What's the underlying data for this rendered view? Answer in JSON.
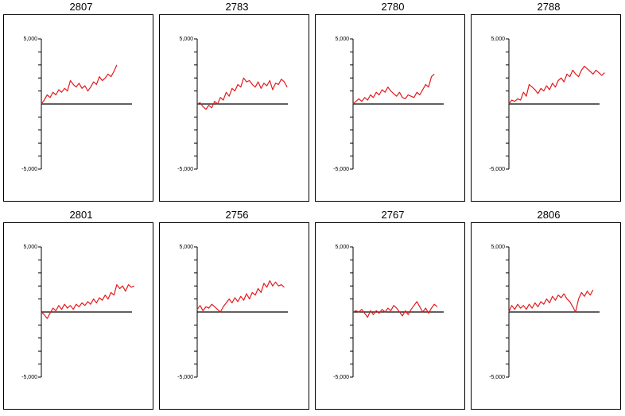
{
  "chart_data": [
    {
      "type": "line",
      "title": "2807",
      "ytick_labels": [
        "5,000",
        "-5,000"
      ],
      "ylim": [
        -5000,
        5000
      ],
      "series": [
        {
          "color": "#e31a1c",
          "values": [
            0,
            300,
            700,
            500,
            900,
            700,
            1100,
            900,
            1200,
            1000,
            1800,
            1500,
            1300,
            1600,
            1200,
            1400,
            1000,
            1300,
            1700,
            1500,
            2100,
            1800,
            2000,
            2300,
            2100,
            2500,
            3000
          ]
        }
      ]
    },
    {
      "type": "line",
      "title": "2783",
      "ytick_labels": [
        "5,000",
        "-5,000"
      ],
      "ylim": [
        -5000,
        5000
      ],
      "series": [
        {
          "color": "#e31a1c",
          "values": [
            0,
            100,
            -200,
            -400,
            -100,
            -300,
            200,
            0,
            500,
            300,
            900,
            600,
            1200,
            1000,
            1500,
            1300,
            2000,
            1700,
            1800,
            1500,
            1300,
            1700,
            1200,
            1600,
            1400,
            1800,
            1100,
            1600,
            1500,
            1900,
            1700,
            1300
          ]
        }
      ]
    },
    {
      "type": "line",
      "title": "2780",
      "ytick_labels": [
        "5,000",
        "-5,000"
      ],
      "ylim": [
        -5000,
        5000
      ],
      "series": [
        {
          "color": "#e31a1c",
          "values": [
            0,
            200,
            400,
            200,
            500,
            300,
            700,
            500,
            900,
            700,
            1100,
            900,
            1300,
            1000,
            800,
            600,
            900,
            500,
            400,
            700,
            600,
            500,
            900,
            700,
            1100,
            1500,
            1300,
            2100,
            2300
          ]
        }
      ]
    },
    {
      "type": "line",
      "title": "2788",
      "ytick_labels": [
        "5,000",
        "-5,000"
      ],
      "ylim": [
        -5000,
        5000
      ],
      "series": [
        {
          "color": "#e31a1c",
          "values": [
            0,
            300,
            200,
            400,
            300,
            900,
            600,
            1500,
            1300,
            1100,
            800,
            1200,
            1000,
            1400,
            1100,
            1600,
            1300,
            1800,
            2000,
            1700,
            2300,
            2100,
            2600,
            2300,
            2100,
            2600,
            2900,
            2700,
            2500,
            2300,
            2600,
            2400,
            2200,
            2400
          ]
        }
      ]
    },
    {
      "type": "line",
      "title": "2801",
      "ytick_labels": [
        "5,000",
        "-5,000"
      ],
      "ylim": [
        -5000,
        5000
      ],
      "series": [
        {
          "color": "#e31a1c",
          "values": [
            0,
            -200,
            -500,
            -100,
            300,
            100,
            500,
            200,
            600,
            300,
            500,
            200,
            600,
            400,
            700,
            500,
            800,
            600,
            1000,
            700,
            1100,
            900,
            1300,
            1000,
            1500,
            1300,
            2100,
            1800,
            2000,
            1600,
            2100,
            1900,
            2000
          ]
        }
      ]
    },
    {
      "type": "line",
      "title": "2756",
      "ytick_labels": [
        "5,000",
        "-5,000"
      ],
      "ylim": [
        -5000,
        5000
      ],
      "series": [
        {
          "color": "#e31a1c",
          "values": [
            200,
            500,
            100,
            400,
            300,
            600,
            400,
            200,
            0,
            400,
            700,
            1000,
            700,
            1100,
            800,
            1200,
            900,
            1400,
            1000,
            1500,
            1300,
            1800,
            1500,
            2200,
            1900,
            2400,
            2000,
            2300,
            2000,
            2100,
            1900
          ]
        }
      ]
    },
    {
      "type": "line",
      "title": "2767",
      "ytick_labels": [
        "5,000",
        "-5,000"
      ],
      "ylim": [
        -5000,
        5000
      ],
      "series": [
        {
          "color": "#e31a1c",
          "values": [
            0,
            100,
            0,
            200,
            -100,
            -400,
            100,
            -200,
            100,
            -100,
            200,
            0,
            300,
            100,
            500,
            300,
            0,
            -300,
            100,
            -200,
            200,
            500,
            800,
            400,
            0,
            300,
            -100,
            300,
            600,
            400
          ]
        }
      ]
    },
    {
      "type": "line",
      "title": "2806",
      "ytick_labels": [
        "5,000",
        "-5,000"
      ],
      "ylim": [
        -5000,
        5000
      ],
      "series": [
        {
          "color": "#e31a1c",
          "values": [
            0,
            500,
            200,
            600,
            300,
            500,
            200,
            600,
            300,
            700,
            400,
            800,
            600,
            1000,
            700,
            1200,
            900,
            1300,
            1100,
            1400,
            1000,
            800,
            400,
            0,
            1000,
            1500,
            1200,
            1600,
            1300,
            1700
          ]
        }
      ]
    }
  ]
}
